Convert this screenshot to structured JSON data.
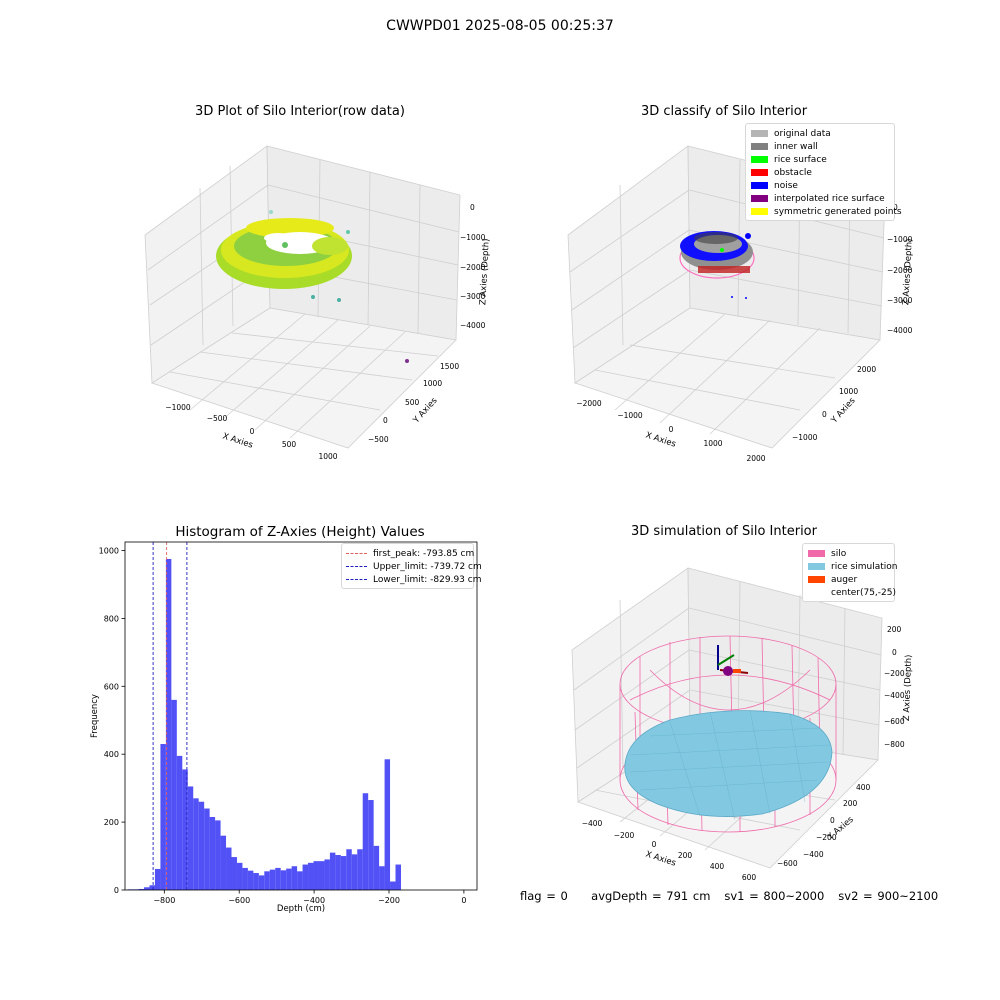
{
  "suptitle": "CWWPD01 2025-08-05 00:25:37",
  "footer": {
    "flag": "flag = 0",
    "avg_depth": "avgDepth = 791 cm",
    "sv1": "sv1 = 800~2000",
    "sv2": "sv2 = 900~2100"
  },
  "colors": {
    "hist_bar": "#4848f5",
    "first_peak": "#e06060",
    "limit_line": "#2020c0",
    "silo": "#f06aa9",
    "rice": "#82c8e0",
    "auger": "#ff4500"
  },
  "chart_data": [
    {
      "type": "scatter3d",
      "title": "3D Plot of Silo Interior(row data)",
      "xlabel": "X Axies",
      "ylabel": "Y Axies",
      "zlabel": "Z Axies (Depth)",
      "x_ticks": [
        "−1000",
        "−500",
        "0",
        "500",
        "1000"
      ],
      "y_ticks": [
        "−500",
        "0",
        "500",
        "1000",
        "1500"
      ],
      "z_ticks": [
        "0",
        "−1000",
        "−2000",
        "−3000",
        "−4000"
      ],
      "colormap": "viridis"
    },
    {
      "type": "scatter3d",
      "title": "3D classify of Silo Interior",
      "xlabel": "X Axies",
      "ylabel": "Y Axies",
      "zlabel": "Z Axies (Depth)",
      "x_ticks": [
        "−2000",
        "−1000",
        "0",
        "1000",
        "2000"
      ],
      "y_ticks": [
        "−1000",
        "0",
        "1000",
        "2000"
      ],
      "z_ticks": [
        "0",
        "−1000",
        "−2000",
        "−3000",
        "−4000"
      ],
      "legend_position": "top-right",
      "legend": [
        {
          "label": "original data",
          "color": "#b4b4b4"
        },
        {
          "label": "inner wall",
          "color": "#808080"
        },
        {
          "label": "rice surface",
          "color": "#00ff00"
        },
        {
          "label": "obstacle",
          "color": "#ff0000"
        },
        {
          "label": "noise",
          "color": "#0000ff"
        },
        {
          "label": "interpolated rice surface",
          "color": "#800080"
        },
        {
          "label": "symmetric generated points",
          "color": "#ffff00"
        }
      ]
    },
    {
      "type": "bar",
      "title": "Histogram of Z-Axies (Height) Values",
      "xlabel": "Depth (cm)",
      "ylabel": "Frequency",
      "xlim": [
        -905,
        35
      ],
      "ylim": [
        0,
        1025
      ],
      "x_ticks": [
        -800,
        -600,
        -400,
        -200,
        0
      ],
      "x_tick_labels": [
        "−800",
        "−600",
        "−400",
        "−200",
        "0"
      ],
      "y_ticks": [
        0,
        200,
        400,
        600,
        800,
        1000
      ],
      "y_tick_labels": [
        "0",
        "200",
        "400",
        "600",
        "800",
        "1000"
      ],
      "bin_start": -898,
      "bin_width": 14.6,
      "values": [
        2,
        2,
        3,
        8,
        14,
        62,
        430,
        975,
        560,
        395,
        355,
        305,
        270,
        260,
        240,
        215,
        205,
        160,
        125,
        97,
        80,
        65,
        57,
        50,
        43,
        55,
        60,
        65,
        58,
        63,
        70,
        55,
        75,
        80,
        85,
        85,
        90,
        110,
        103,
        100,
        120,
        105,
        120,
        285,
        265,
        130,
        70,
        385,
        25,
        75
      ],
      "vlines": [
        {
          "x": -793.85,
          "label": "first_peak: -793.85 cm",
          "color": "#e06060"
        },
        {
          "x": -739.72,
          "label": "Upper_limit: -739.72 cm",
          "color": "#2020c0"
        },
        {
          "x": -829.93,
          "label": "Lower_limit: -829.93 cm",
          "color": "#2020c0"
        }
      ],
      "legend_position": "top-right"
    },
    {
      "type": "surface3d",
      "title": "3D simulation of Silo Interior",
      "xlabel": "X Axies",
      "ylabel": "Y Axies",
      "zlabel": "Z Axies (Depth)",
      "x_ticks": [
        "−400",
        "−200",
        "0",
        "200",
        "400",
        "600"
      ],
      "y_ticks": [
        "−600",
        "−400",
        "−200",
        "0",
        "200",
        "400"
      ],
      "z_ticks": [
        "200",
        "0",
        "−200",
        "−400",
        "−600",
        "−800"
      ],
      "legend_position": "top-right",
      "legend": [
        {
          "label": "silo",
          "color": "#f06aa9"
        },
        {
          "label": "rice simulation",
          "color": "#82c8e0"
        },
        {
          "label": "auger",
          "color": "#ff4500"
        },
        {
          "label": "center(75,-25)",
          "color": ""
        }
      ]
    }
  ]
}
